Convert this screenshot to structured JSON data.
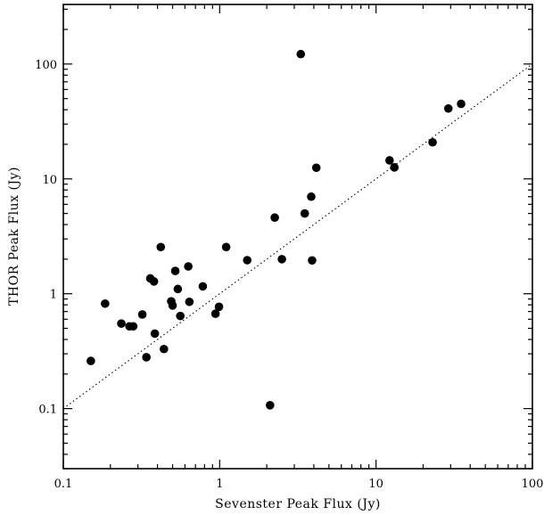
{
  "chart_data": {
    "type": "scatter",
    "xlabel": "Sevenster Peak Flux (Jy)",
    "ylabel": "THOR Peak Flux (Jy)",
    "xscale": "log",
    "yscale": "log",
    "xlim": [
      0.1,
      100
    ],
    "ylim": [
      0.03,
      330
    ],
    "xticks": [
      {
        "value": 0.1,
        "label": "0.1"
      },
      {
        "value": 1,
        "label": "1"
      },
      {
        "value": 10,
        "label": "10"
      },
      {
        "value": 100,
        "label": "100"
      }
    ],
    "yticks": [
      {
        "value": 0.1,
        "label": "0.1"
      },
      {
        "value": 1,
        "label": "1"
      },
      {
        "value": 10,
        "label": "10"
      },
      {
        "value": 100,
        "label": "100"
      }
    ],
    "grid": false,
    "reference_line": {
      "style": "dotted",
      "relation": "y = x",
      "from": [
        0.1,
        0.1
      ],
      "to": [
        100,
        100
      ]
    },
    "points": [
      {
        "x": 0.15,
        "y": 0.26
      },
      {
        "x": 0.185,
        "y": 0.82
      },
      {
        "x": 0.235,
        "y": 0.55
      },
      {
        "x": 0.265,
        "y": 0.52
      },
      {
        "x": 0.28,
        "y": 0.52
      },
      {
        "x": 0.32,
        "y": 0.66
      },
      {
        "x": 0.34,
        "y": 0.28
      },
      {
        "x": 0.36,
        "y": 1.36
      },
      {
        "x": 0.38,
        "y": 1.28
      },
      {
        "x": 0.385,
        "y": 0.45
      },
      {
        "x": 0.42,
        "y": 2.55
      },
      {
        "x": 0.44,
        "y": 0.33
      },
      {
        "x": 0.49,
        "y": 0.86
      },
      {
        "x": 0.5,
        "y": 0.79
      },
      {
        "x": 0.52,
        "y": 1.58
      },
      {
        "x": 0.54,
        "y": 1.1
      },
      {
        "x": 0.56,
        "y": 0.64
      },
      {
        "x": 0.63,
        "y": 1.73
      },
      {
        "x": 0.64,
        "y": 0.85
      },
      {
        "x": 0.78,
        "y": 1.16
      },
      {
        "x": 0.94,
        "y": 0.67
      },
      {
        "x": 0.99,
        "y": 0.77
      },
      {
        "x": 1.1,
        "y": 2.55
      },
      {
        "x": 1.5,
        "y": 1.96
      },
      {
        "x": 2.1,
        "y": 0.107
      },
      {
        "x": 2.25,
        "y": 4.6
      },
      {
        "x": 2.5,
        "y": 2.0
      },
      {
        "x": 3.3,
        "y": 122
      },
      {
        "x": 3.5,
        "y": 5.0
      },
      {
        "x": 3.85,
        "y": 7.0
      },
      {
        "x": 3.9,
        "y": 1.95
      },
      {
        "x": 4.15,
        "y": 12.5
      },
      {
        "x": 12.2,
        "y": 14.5
      },
      {
        "x": 13.1,
        "y": 12.6
      },
      {
        "x": 23.0,
        "y": 20.8
      },
      {
        "x": 29.0,
        "y": 41.0
      },
      {
        "x": 35.0,
        "y": 45.0
      }
    ]
  }
}
